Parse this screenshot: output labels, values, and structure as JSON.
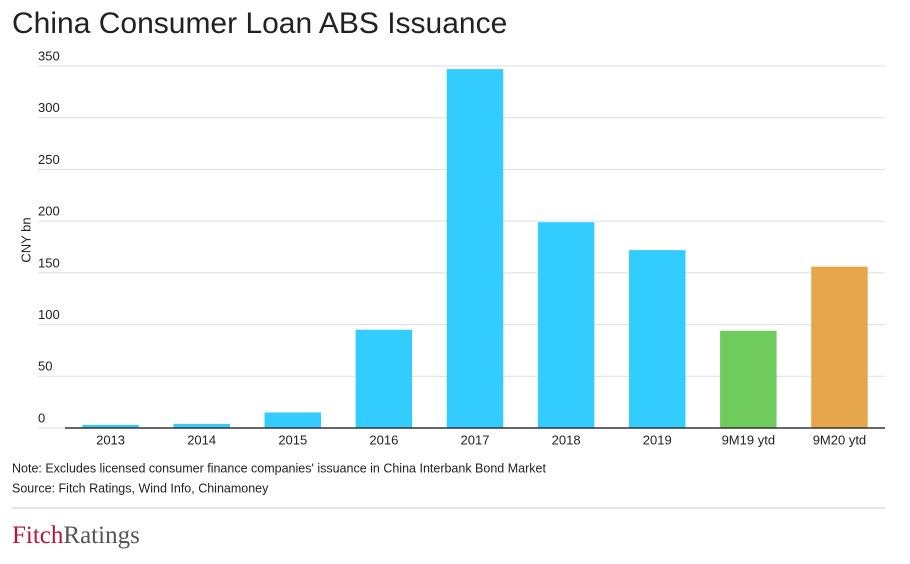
{
  "chart_data": {
    "type": "bar",
    "title": "China Consumer Loan ABS Issuance",
    "y_label": "CNY bn",
    "categories": [
      "2013",
      "2014",
      "2015",
      "2016",
      "2017",
      "2018",
      "2019",
      "9M19 ytd",
      "9M20 ytd"
    ],
    "values": [
      3,
      4,
      15,
      95,
      347,
      199,
      172,
      94,
      156
    ],
    "colors": [
      "#33ccff",
      "#33ccff",
      "#33ccff",
      "#33ccff",
      "#33ccff",
      "#33ccff",
      "#33ccff",
      "#6fcb5b",
      "#e5a64c"
    ],
    "ylim": [
      0,
      350
    ],
    "yticks": [
      0,
      50,
      100,
      150,
      200,
      250,
      300,
      350
    ],
    "grid": true,
    "notes": [
      "Note: Excludes licensed consumer finance companies' issuance in China Interbank Bond Market",
      "Source: Fitch Ratings, Wind Info, Chinamoney"
    ],
    "logo": [
      "Fitch",
      "Ratings"
    ]
  }
}
